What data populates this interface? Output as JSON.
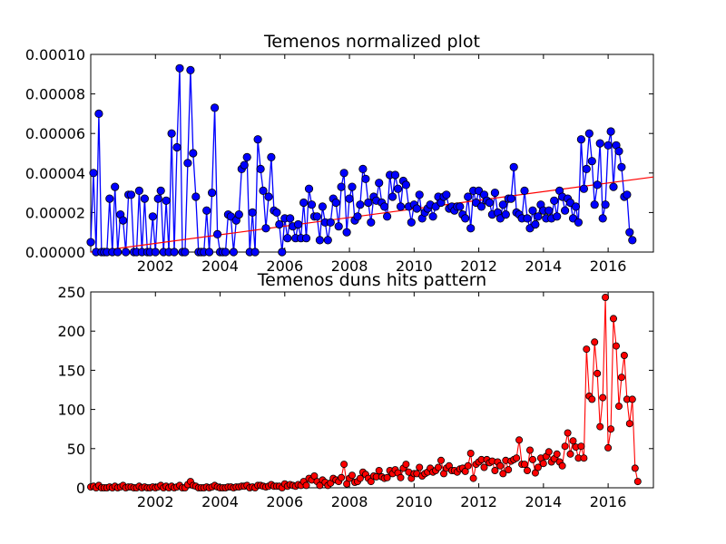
{
  "colors": {
    "top_series": "#0000ff",
    "top_trend": "#ff0000",
    "bottom_series": "#ff0000",
    "marker_edge": "#000000"
  },
  "chart_data": [
    {
      "type": "line",
      "title": "Temenos normalized plot",
      "xlabel": "",
      "ylabel": "",
      "xlim": [
        2000.0,
        2017.4
      ],
      "ylim": [
        0,
        0.0001
      ],
      "x_ticks": [
        2002,
        2004,
        2006,
        2008,
        2010,
        2012,
        2014,
        2016
      ],
      "x_tick_labels": [
        "2002",
        "2004",
        "2006",
        "2008",
        "2010",
        "2012",
        "2014",
        "2016"
      ],
      "y_ticks": [
        0,
        2e-05,
        4e-05,
        6e-05,
        8e-05,
        0.0001
      ],
      "y_tick_labels": [
        "0.00000",
        "0.00002",
        "0.00004",
        "0.00006",
        "0.00008",
        "0.00010"
      ],
      "grid": false,
      "series": [
        {
          "marker": "circle",
          "start": 2000.0,
          "step": 0.08333,
          "values": [
            5e-06,
            4e-05,
            0,
            7e-05,
            0,
            0,
            0,
            2.7e-05,
            0,
            3.3e-05,
            0,
            1.9e-05,
            1.6e-05,
            0,
            2.9e-05,
            2.9e-05,
            0,
            0,
            3.1e-05,
            0,
            2.7e-05,
            0,
            0,
            1.8e-05,
            0,
            2.7e-05,
            3.1e-05,
            0,
            2.6e-05,
            0,
            6e-05,
            0,
            5.3e-05,
            9.3e-05,
            0,
            0,
            4.5e-05,
            9.2e-05,
            5e-05,
            2.8e-05,
            0,
            0,
            0,
            2.1e-05,
            0,
            3e-05,
            7.3e-05,
            9e-06,
            0,
            0,
            0,
            1.9e-05,
            1.8e-05,
            0,
            1.6e-05,
            1.9e-05,
            4.2e-05,
            4.4e-05,
            4.8e-05,
            0,
            2e-05,
            0,
            5.7e-05,
            4.2e-05,
            3.1e-05,
            1.2e-05,
            2.8e-05,
            4.8e-05,
            2.1e-05,
            2e-05,
            1.4e-05,
            0,
            1.7e-05,
            7e-06,
            1.7e-05,
            1.3e-05,
            7e-06,
            1.4e-05,
            7e-06,
            2.5e-05,
            7e-06,
            3.2e-05,
            2.4e-05,
            1.8e-05,
            1.8e-05,
            6e-06,
            2.3e-05,
            1.5e-05,
            6e-06,
            1.5e-05,
            2.7e-05,
            2.5e-05,
            1.3e-05,
            3.3e-05,
            4e-05,
            1e-05,
            2.7e-05,
            3.3e-05,
            1.6e-05,
            1.8e-05,
            2.4e-05,
            4.2e-05,
            3.7e-05,
            2.5e-05,
            1.5e-05,
            2.8e-05,
            2.6e-05,
            3.5e-05,
            2.5e-05,
            2.3e-05,
            1.8e-05,
            3.9e-05,
            2.8e-05,
            3.9e-05,
            3.2e-05,
            2.3e-05,
            3.6e-05,
            3.4e-05,
            2.3e-05,
            1.5e-05,
            2.4e-05,
            2.2e-05,
            2.9e-05,
            1.7e-05,
            2e-05,
            2.2e-05,
            2.4e-05,
            1.8e-05,
            2.3e-05,
            2.8e-05,
            2.5e-05,
            2.8e-05,
            2.9e-05,
            2.2e-05,
            2.3e-05,
            2.1e-05,
            2.3e-05,
            2.3e-05,
            1.9e-05,
            1.7e-05,
            2.8e-05,
            1.2e-05,
            3.1e-05,
            2.5e-05,
            3.1e-05,
            2.3e-05,
            2.9e-05,
            2.6e-05,
            2.5e-05,
            1.9e-05,
            3e-05,
            2e-05,
            1.7e-05,
            2.4e-05,
            1.9e-05,
            2.7e-05,
            2.7e-05,
            4.3e-05,
            2e-05,
            1.9e-05,
            1.7e-05,
            3.1e-05,
            1.7e-05,
            1.2e-05,
            2.1e-05,
            1.4e-05,
            1.8e-05,
            2.4e-05,
            2.1e-05,
            1.7e-05,
            2.1e-05,
            1.7e-05,
            2.6e-05,
            1.8e-05,
            3.1e-05,
            2.8e-05,
            2.1e-05,
            2.7e-05,
            2.5e-05,
            1.7e-05,
            2.3e-05,
            1.5e-05,
            5.7e-05,
            3.2e-05,
            4.2e-05,
            6e-05,
            4.6e-05,
            2.4e-05,
            3.4e-05,
            5.5e-05,
            1.7e-05,
            2.4e-05,
            5.4e-05,
            6.1e-05,
            3.3e-05,
            5.4e-05,
            5.1e-05,
            4.3e-05,
            2.8e-05,
            2.9e-05,
            1e-05,
            6e-06
          ]
        },
        {
          "type": "trend",
          "x": [
            2000.0,
            2017.4
          ],
          "y": [
            0,
            3.8e-05
          ]
        }
      ]
    },
    {
      "type": "line",
      "title": "Temenos duns hits pattern",
      "xlabel": "",
      "ylabel": "",
      "xlim": [
        2000.0,
        2017.4
      ],
      "ylim": [
        0,
        250
      ],
      "x_ticks": [
        2002,
        2004,
        2006,
        2008,
        2010,
        2012,
        2014,
        2016
      ],
      "x_tick_labels": [
        "2002",
        "2004",
        "2006",
        "2008",
        "2010",
        "2012",
        "2014",
        "2016"
      ],
      "y_ticks": [
        0,
        50,
        100,
        150,
        200,
        250
      ],
      "y_tick_labels": [
        "0",
        "50",
        "100",
        "150",
        "200",
        "250"
      ],
      "grid": false,
      "series": [
        {
          "marker": "circle",
          "start": 2000.0,
          "step": 0.08333,
          "values": [
            1,
            2,
            0,
            3,
            0,
            0,
            0,
            1,
            0,
            2,
            0,
            1,
            3,
            0,
            1,
            1,
            0,
            0,
            2,
            0,
            1,
            0,
            0,
            1,
            0,
            1,
            3,
            0,
            2,
            0,
            2,
            0,
            1,
            3,
            0,
            0,
            4,
            8,
            3,
            2,
            0,
            0,
            0,
            1,
            0,
            1,
            3,
            1,
            0,
            0,
            0,
            1,
            1,
            0,
            1,
            1,
            2,
            2,
            3,
            0,
            1,
            0,
            3,
            3,
            2,
            1,
            2,
            4,
            2,
            2,
            2,
            0,
            5,
            2,
            4,
            3,
            2,
            4,
            3,
            8,
            3,
            12,
            10,
            15,
            8,
            3,
            10,
            7,
            3,
            6,
            12,
            10,
            8,
            13,
            30,
            5,
            12,
            16,
            7,
            8,
            12,
            20,
            17,
            12,
            8,
            15,
            14,
            22,
            14,
            12,
            13,
            22,
            18,
            23,
            19,
            13,
            25,
            30,
            20,
            12,
            18,
            18,
            26,
            15,
            18,
            20,
            25,
            20,
            22,
            26,
            35,
            18,
            25,
            28,
            22,
            22,
            20,
            24,
            25,
            21,
            28,
            44,
            12,
            30,
            33,
            36,
            26,
            36,
            32,
            34,
            22,
            33,
            28,
            18,
            35,
            23,
            34,
            36,
            38,
            61,
            30,
            30,
            22,
            48,
            36,
            19,
            26,
            38,
            31,
            40,
            46,
            33,
            37,
            43,
            33,
            28,
            53,
            70,
            43,
            60,
            52,
            38,
            53,
            38,
            177,
            117,
            113,
            186,
            146,
            78,
            115,
            243,
            51,
            75,
            216,
            181,
            104,
            141,
            169,
            113,
            82,
            113,
            25,
            8
          ]
        }
      ]
    }
  ]
}
